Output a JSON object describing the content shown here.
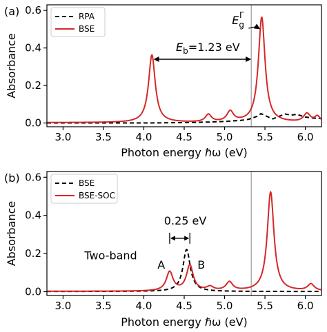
{
  "chart_data": [
    {
      "type": "line",
      "panel_label": "(a)",
      "xlabel": "Photon energy ℏω (eV)",
      "ylabel": "Absorbance",
      "xlim": [
        2.8,
        6.2
      ],
      "ylim": [
        -0.02,
        0.63
      ],
      "xticks": [
        "3.0",
        "3.5",
        "4.0",
        "4.5",
        "5.0",
        "5.5",
        "6.0"
      ],
      "yticks": [
        "0.0",
        "0.2",
        "0.4",
        "0.6"
      ],
      "legend_position": "top-left",
      "vline_x": 5.33,
      "annotations": {
        "exciton": "E_b=1.23 eV",
        "gap": "E_g^Γ",
        "exciton_arrow_x": [
          4.12,
          5.33
        ],
        "exciton_arrow_y": 0.34
      },
      "series": [
        {
          "name": "RPA",
          "color": "#000000",
          "style": "dashed",
          "x": [
            2.8,
            4.0,
            4.5,
            4.8,
            5.0,
            5.2,
            5.3,
            5.4,
            5.45,
            5.55,
            5.6,
            5.7,
            5.75,
            5.82,
            5.9,
            5.95,
            6.0,
            6.1,
            6.2
          ],
          "y": [
            0.0,
            0.0,
            0.002,
            0.005,
            0.008,
            0.014,
            0.02,
            0.035,
            0.05,
            0.03,
            0.022,
            0.04,
            0.048,
            0.042,
            0.046,
            0.038,
            0.032,
            0.026,
            0.024
          ]
        },
        {
          "name": "BSE",
          "color": "#d62728",
          "style": "solid",
          "peaks": [
            {
              "x0": 4.1,
              "h": 0.36,
              "w": 0.05
            },
            {
              "x0": 4.8,
              "h": 0.04,
              "w": 0.045
            },
            {
              "x0": 5.07,
              "h": 0.055,
              "w": 0.05
            },
            {
              "x0": 5.46,
              "h": 0.56,
              "w": 0.05
            },
            {
              "x0": 6.02,
              "h": 0.045,
              "w": 0.05
            },
            {
              "x0": 6.15,
              "h": 0.03,
              "w": 0.04
            }
          ],
          "baseline": 0.002
        }
      ]
    },
    {
      "type": "line",
      "panel_label": "(b)",
      "xlabel": "Photon energy ℏω (eV)",
      "ylabel": "Absorbance",
      "xlim": [
        2.8,
        6.2
      ],
      "ylim": [
        -0.02,
        0.63
      ],
      "xticks": [
        "3.0",
        "3.5",
        "4.0",
        "4.5",
        "5.0",
        "5.5",
        "6.0"
      ],
      "yticks": [
        "0.0",
        "0.2",
        "0.4",
        "0.6"
      ],
      "legend_position": "top-left",
      "vline_x": 5.33,
      "annotations": {
        "text_label": "Two-band",
        "split_label": "0.25 eV",
        "peak_a": "A",
        "peak_b": "B",
        "split_x": [
          4.32,
          4.57
        ]
      },
      "series": [
        {
          "name": "BSE",
          "color": "#000000",
          "style": "dashed",
          "peaks": [
            {
              "x0": 4.53,
              "h": 0.22,
              "w": 0.055
            }
          ],
          "baseline": 0.001
        },
        {
          "name": "BSE-SOC",
          "color": "#d62728",
          "style": "solid",
          "peaks": [
            {
              "x0": 4.32,
              "h": 0.1,
              "w": 0.05
            },
            {
              "x0": 4.57,
              "h": 0.135,
              "w": 0.05
            },
            {
              "x0": 4.82,
              "h": 0.02,
              "w": 0.05
            },
            {
              "x0": 5.06,
              "h": 0.045,
              "w": 0.05
            },
            {
              "x0": 5.57,
              "h": 0.52,
              "w": 0.05
            },
            {
              "x0": 6.07,
              "h": 0.035,
              "w": 0.05
            }
          ],
          "baseline": 0.002
        }
      ]
    }
  ]
}
